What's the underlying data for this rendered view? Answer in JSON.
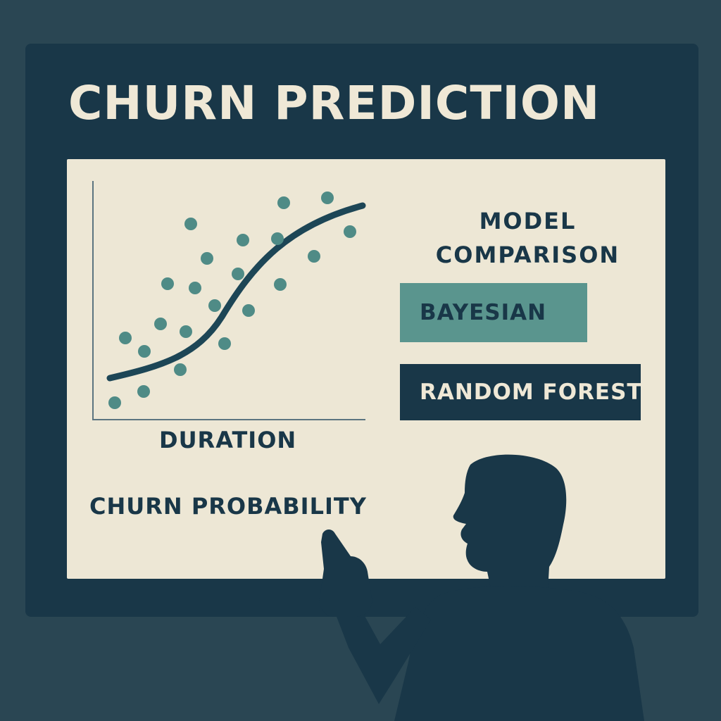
{
  "title": "CHURN PREDICTION",
  "chart": {
    "x_label": "DURATION",
    "y_label": "CHURN PROBABILITY"
  },
  "model_comparison": {
    "heading_line1": "MODEL",
    "heading_line2": "COMPARISON",
    "options": [
      "BAYESIAN",
      "RANDOM FOREST"
    ]
  },
  "colors": {
    "background": "#2a4653",
    "board": "#193748",
    "panel": "#ede7d5",
    "accent_teal": "#5a958e",
    "dark_navy": "#193748"
  },
  "icons": [
    "presenter-silhouette"
  ]
}
